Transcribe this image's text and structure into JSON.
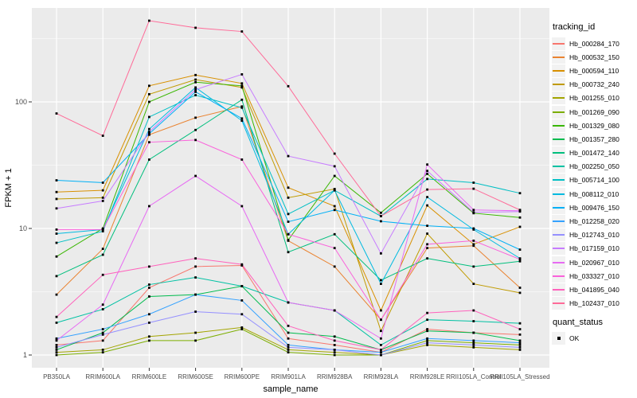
{
  "figure": {
    "x_axis_title": "sample_name",
    "y_axis_title": "FPKM + 1",
    "legend_tracking_title": "tracking_id",
    "legend_quant_title": "quant_status",
    "quant_entries": [
      {
        "label": "OK"
      }
    ],
    "panel_bg_color": "#EBEBEB",
    "gridline_color": "#FFFFFF",
    "tick_label_color": "#4D4D4D",
    "point_color": "#000000"
  },
  "chart_data": {
    "type": "line",
    "title": "",
    "xlabel": "sample_name",
    "ylabel": "FPKM + 1",
    "y_scale": "log10",
    "ylim": [
      0.79,
      550
    ],
    "y_ticks": [
      1,
      10,
      100
    ],
    "grid": true,
    "legend_position": "right",
    "point_marker": "black-square",
    "point_legend": {
      "title": "quant_status",
      "entries": [
        "OK"
      ]
    },
    "categories": [
      "PB350LA",
      "RRIM600LA",
      "RRIM600LE",
      "RRIM600SE",
      "RRIM600PE",
      "RRIM901LA",
      "RRIM928BA",
      "RRIM928LA",
      "RRIM928LE",
      "RRII105LA_Control",
      "RRII105LA_Stressed"
    ],
    "series": [
      {
        "name": "Hb_000284_170",
        "color": "#F8766D",
        "values": [
          1.2,
          1.3,
          3.4,
          5.0,
          5.1,
          1.35,
          1.2,
          1.05,
          1.6,
          1.5,
          1.45
        ]
      },
      {
        "name": "Hb_000532_150",
        "color": "#EA8331",
        "values": [
          3.0,
          6.9,
          55,
          75,
          92,
          8.0,
          5.0,
          1.9,
          7.0,
          7.3,
          3.4
        ]
      },
      {
        "name": "Hb_000594_110",
        "color": "#D89000",
        "values": [
          19.4,
          20,
          134,
          163,
          140,
          21,
          15,
          2.25,
          15.2,
          7.5,
          10.3
        ]
      },
      {
        "name": "Hb_000732_240",
        "color": "#C09B00",
        "values": [
          17.1,
          17.5,
          115,
          150,
          130,
          17.5,
          20.5,
          1.55,
          9.1,
          3.65,
          3.1
        ]
      },
      {
        "name": "Hb_001255_010",
        "color": "#A3A500",
        "values": [
          1.05,
          1.1,
          1.4,
          1.5,
          1.65,
          1.1,
          1.05,
          1.0,
          1.2,
          1.15,
          1.1
        ]
      },
      {
        "name": "Hb_001269_090",
        "color": "#7CAE00",
        "values": [
          1.0,
          1.05,
          1.3,
          1.3,
          1.6,
          1.05,
          1.0,
          1.0,
          1.3,
          1.25,
          1.2
        ]
      },
      {
        "name": "Hb_001329_080",
        "color": "#39B600",
        "values": [
          6.0,
          10,
          100,
          143,
          134,
          8.1,
          26,
          13.3,
          27,
          13.2,
          12.2
        ]
      },
      {
        "name": "Hb_001357_280",
        "color": "#00BB4E",
        "values": [
          1.1,
          1.5,
          2.9,
          3.0,
          3.5,
          1.5,
          1.4,
          1.1,
          1.55,
          1.5,
          1.3
        ]
      },
      {
        "name": "Hb_001472_140",
        "color": "#00BF7D",
        "values": [
          4.2,
          6.2,
          35,
          60,
          104,
          6.5,
          9.0,
          3.9,
          5.8,
          5.0,
          5.5
        ]
      },
      {
        "name": "Hb_002250_050",
        "color": "#00C1A3",
        "values": [
          1.8,
          2.3,
          3.6,
          4.1,
          3.5,
          2.6,
          2.25,
          1.2,
          1.9,
          1.85,
          1.78
        ]
      },
      {
        "name": "Hb_005714_100",
        "color": "#00BFC4",
        "values": [
          7.7,
          9.5,
          76,
          113,
          90,
          13,
          20,
          12.5,
          24.6,
          23,
          19
        ]
      },
      {
        "name": "Hb_008112_010",
        "color": "#00BAE0",
        "values": [
          9.1,
          9.8,
          61,
          130,
          71,
          9.0,
          20,
          3.65,
          17.7,
          9.8,
          5.8
        ]
      },
      {
        "name": "Hb_009476_150",
        "color": "#00B0F6",
        "values": [
          24,
          23,
          56,
          120,
          74,
          11.3,
          14,
          11.4,
          10.5,
          10.0,
          6.8
        ]
      },
      {
        "name": "Hb_012258_020",
        "color": "#35A2FF",
        "values": [
          1.35,
          1.6,
          2.1,
          3.0,
          2.7,
          1.2,
          1.1,
          1.05,
          1.35,
          1.3,
          1.25
        ]
      },
      {
        "name": "Hb_012743_010",
        "color": "#9590FF",
        "values": [
          1.15,
          1.45,
          1.8,
          2.2,
          2.1,
          1.15,
          1.1,
          1.0,
          1.25,
          1.2,
          1.15
        ]
      },
      {
        "name": "Hb_017159_010",
        "color": "#C77CFF",
        "values": [
          14.4,
          16.5,
          58,
          125,
          165,
          37.3,
          31,
          6.35,
          28.5,
          13.4,
          13.6
        ]
      },
      {
        "name": "Hb_020967_010",
        "color": "#E76BF3",
        "values": [
          1.3,
          2.5,
          15,
          26,
          15,
          2.6,
          2.25,
          1.35,
          32,
          14,
          13.8
        ]
      },
      {
        "name": "Hb_033327_010",
        "color": "#FA62DB",
        "values": [
          9.8,
          9.8,
          48,
          50,
          35,
          9.0,
          7.0,
          1.9,
          7.5,
          8.0,
          5.7
        ]
      },
      {
        "name": "Hb_041895_040",
        "color": "#FF62BC",
        "values": [
          2.0,
          4.3,
          5.0,
          5.8,
          5.2,
          1.7,
          1.3,
          1.1,
          2.15,
          2.25,
          1.6
        ]
      },
      {
        "name": "Hb_102437_010",
        "color": "#FF6A98",
        "values": [
          81,
          54,
          438,
          385,
          360,
          133,
          39,
          12.5,
          20.3,
          20.6,
          14
        ]
      }
    ]
  }
}
